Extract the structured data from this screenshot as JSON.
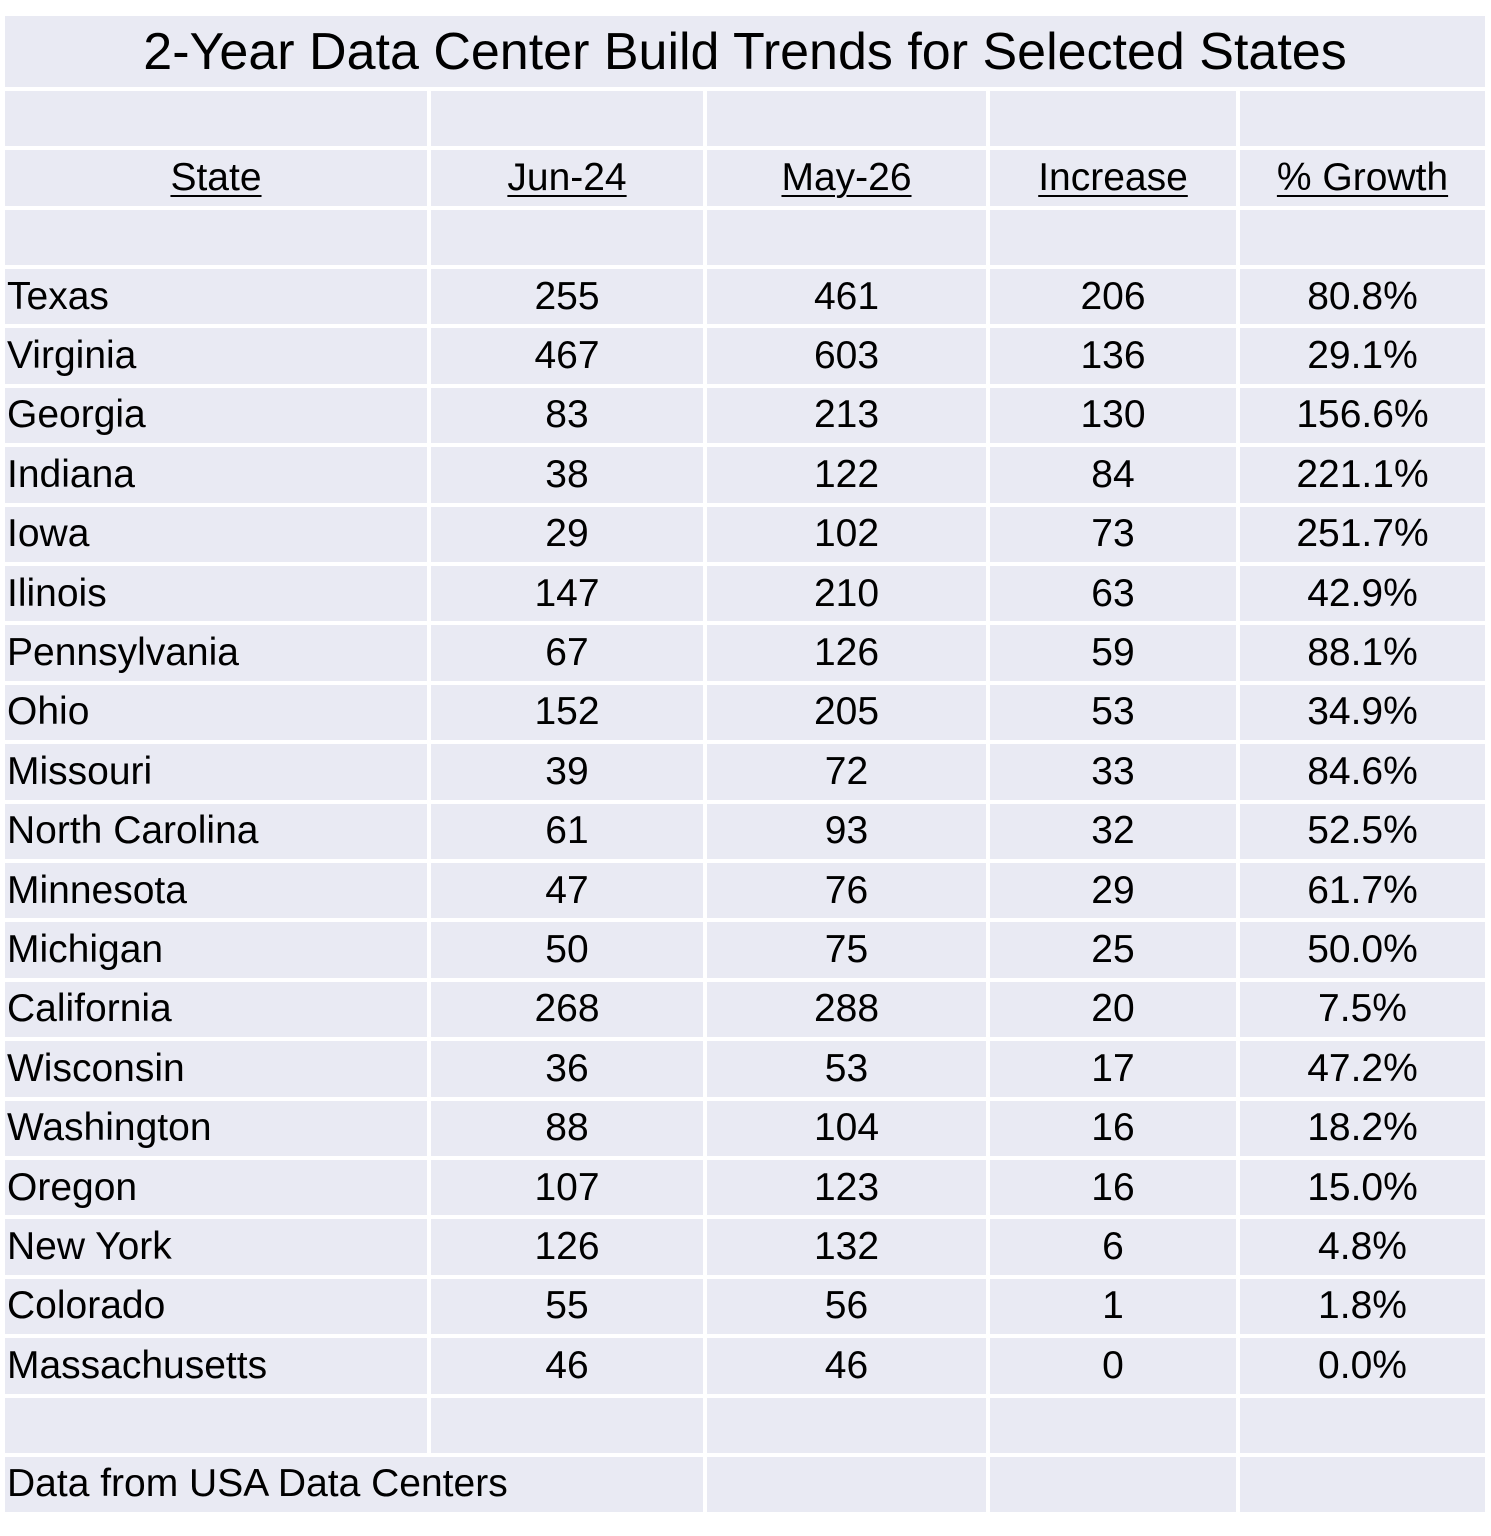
{
  "chart_data": {
    "type": "table",
    "title": "2-Year Data Center Build Trends for Selected States",
    "columns": [
      "State",
      "Jun-24",
      "May-26",
      "Increase",
      "% Growth"
    ],
    "rows": [
      [
        "Texas",
        "255",
        "461",
        "206",
        "80.8%"
      ],
      [
        "Virginia",
        "467",
        "603",
        "136",
        "29.1%"
      ],
      [
        "Georgia",
        "83",
        "213",
        "130",
        "156.6%"
      ],
      [
        "Indiana",
        "38",
        "122",
        "84",
        "221.1%"
      ],
      [
        "Iowa",
        "29",
        "102",
        "73",
        "251.7%"
      ],
      [
        "Ilinois",
        "147",
        "210",
        "63",
        "42.9%"
      ],
      [
        "Pennsylvania",
        "67",
        "126",
        "59",
        "88.1%"
      ],
      [
        "Ohio",
        "152",
        "205",
        "53",
        "34.9%"
      ],
      [
        "Missouri",
        "39",
        "72",
        "33",
        "84.6%"
      ],
      [
        "North Carolina",
        "61",
        "93",
        "32",
        "52.5%"
      ],
      [
        "Minnesota",
        "47",
        "76",
        "29",
        "61.7%"
      ],
      [
        "Michigan",
        "50",
        "75",
        "25",
        "50.0%"
      ],
      [
        "California",
        "268",
        "288",
        "20",
        "7.5%"
      ],
      [
        "Wisconsin",
        "36",
        "53",
        "17",
        "47.2%"
      ],
      [
        "Washington",
        "88",
        "104",
        "16",
        "18.2%"
      ],
      [
        "Oregon",
        "107",
        "123",
        "16",
        "15.0%"
      ],
      [
        "New York",
        "126",
        "132",
        "6",
        "4.8%"
      ],
      [
        "Colorado",
        "55",
        "56",
        "1",
        "1.8%"
      ],
      [
        "Massachusetts",
        "46",
        "46",
        "0",
        "0.0%"
      ]
    ],
    "footnote": "Data from USA Data Centers"
  },
  "colors": {
    "cell_fill": "#e9eaf3",
    "grid_line": "#ffffff",
    "text": "#000000"
  }
}
